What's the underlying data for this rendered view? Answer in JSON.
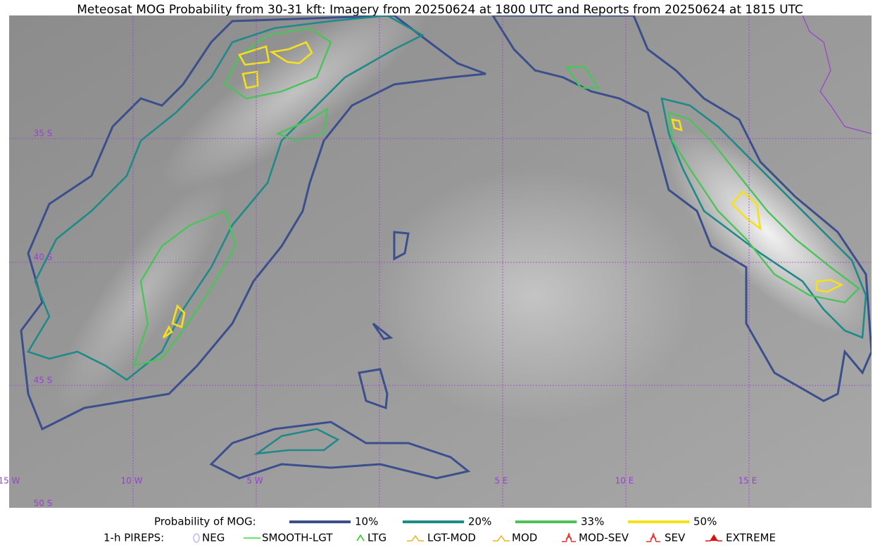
{
  "title": "Meteosat MOG Probability from 30-31 kft: Imagery from 20250624 at 1800 UTC and Reports from 20250624 at 1815 UTC",
  "map": {
    "lat_labels": [
      "35 S",
      "40 S",
      "45 S",
      "50 S"
    ],
    "lon_labels": [
      "15 W",
      "10 W",
      "5 W",
      "5 E",
      "10 E",
      "15 E"
    ]
  },
  "legend": {
    "probability": {
      "title": "Probability of MOG:",
      "items": [
        {
          "label": "10%",
          "color": "#3b4f8c"
        },
        {
          "label": "20%",
          "color": "#1f8a87"
        },
        {
          "label": "33%",
          "color": "#4cc35a"
        },
        {
          "label": "50%",
          "color": "#f4e01c"
        }
      ]
    },
    "pireps": {
      "title": "1-h PIREPS:",
      "items": [
        {
          "label": "NEG",
          "color": "#b9b9f5"
        },
        {
          "label": "SMOOTH-LGT",
          "color": "#33dd33"
        },
        {
          "label": "LTG",
          "color": "#22cc22"
        },
        {
          "label": "LGT-MOD",
          "color": "#f0b020"
        },
        {
          "label": "MOD",
          "color": "#f0b020"
        },
        {
          "label": "MOD-SEV",
          "color": "#e83030"
        },
        {
          "label": "SEV",
          "color": "#e83030"
        },
        {
          "label": "EXTREME",
          "color": "#e01010"
        }
      ]
    }
  }
}
